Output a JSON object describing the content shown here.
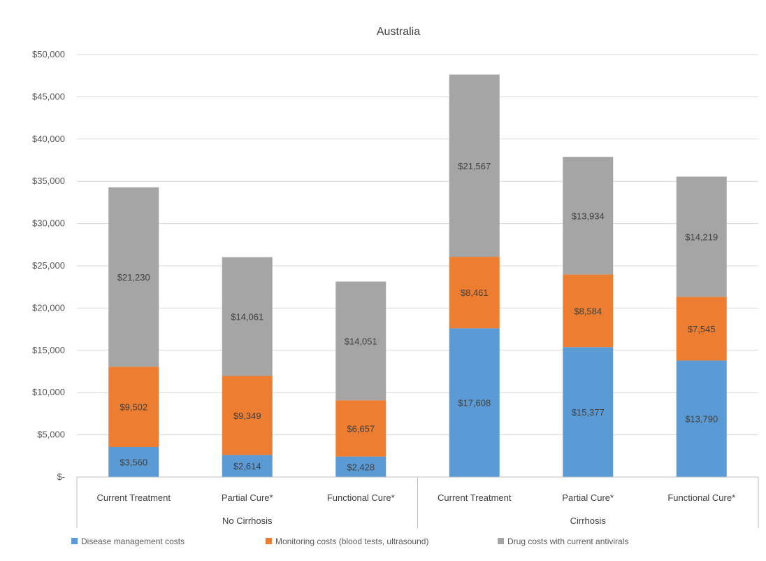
{
  "chart_data": {
    "type": "bar",
    "stacked": true,
    "title": "Australia",
    "xlabel": "",
    "ylabel": "",
    "ylim": [
      0,
      50000
    ],
    "yticks": [
      0,
      5000,
      10000,
      15000,
      20000,
      25000,
      30000,
      35000,
      40000,
      45000,
      50000
    ],
    "ytick_labels": [
      "$-",
      "$5,000",
      "$10,000",
      "$15,000",
      "$20,000",
      "$25,000",
      "$30,000",
      "$35,000",
      "$40,000",
      "$45,000",
      "$50,000"
    ],
    "grid": true,
    "legend_position": "bottom",
    "categories": [
      "Current Treatment",
      "Partial Cure*",
      "Functional Cure*",
      "Current Treatment",
      "Partial Cure*",
      "Functional Cure*"
    ],
    "groups": [
      {
        "label": "No Cirrhosis",
        "categories": [
          0,
          1,
          2
        ]
      },
      {
        "label": "Cirrhosis",
        "categories": [
          3,
          4,
          5
        ]
      }
    ],
    "series": [
      {
        "name": "Disease management costs",
        "color": "#5B9BD5",
        "values": [
          3560,
          2614,
          2428,
          17608,
          15377,
          13790
        ],
        "labels": [
          "$3,560",
          "$2,614",
          "$2,428",
          "$17,608",
          "$15,377",
          "$13,790"
        ]
      },
      {
        "name": "Monitoring costs (blood tests, ultrasound)",
        "color": "#ED7D31",
        "values": [
          9502,
          9349,
          6657,
          8461,
          8584,
          7545
        ],
        "labels": [
          "$9,502",
          "$9,349",
          "$6,657",
          "$8,461",
          "$8,584",
          "$7,545"
        ]
      },
      {
        "name": "Drug costs with current antivirals",
        "color": "#A5A5A5",
        "values": [
          21230,
          14061,
          14051,
          21567,
          13934,
          14219
        ],
        "labels": [
          "$21,230",
          "$14,061",
          "$14,051",
          "$21,567",
          "$13,934",
          "$14,219"
        ]
      }
    ]
  }
}
